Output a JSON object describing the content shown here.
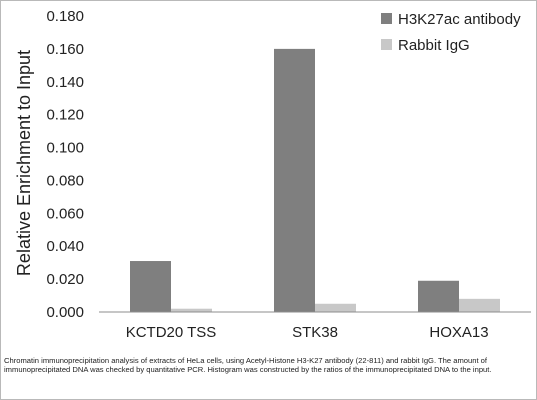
{
  "chart_data": {
    "type": "bar",
    "title": "",
    "xlabel": "",
    "ylabel": "Relative Enrichment to Input",
    "ylim": [
      0,
      0.18
    ],
    "ytick_step": 0.02,
    "ytick_labels": [
      "0.000",
      "0.020",
      "0.040",
      "0.060",
      "0.080",
      "0.100",
      "0.120",
      "0.140",
      "0.160",
      "0.180"
    ],
    "grid": false,
    "legend_position": "top-right",
    "categories": [
      "KCTD20 TSS",
      "STK38",
      "HOXA13"
    ],
    "series": [
      {
        "name": "H3K27ac antibody",
        "color": "#7f7f7f",
        "values": [
          0.031,
          0.16,
          0.019
        ]
      },
      {
        "name": "Rabbit IgG",
        "color": "#c8c8c8",
        "values": [
          0.002,
          0.005,
          0.008
        ]
      }
    ]
  },
  "caption": "Chromatin immunoprecipitation analysis of extracts of HeLa cells, using Acetyl-Histone H3-K27 antibody (22-811) and rabbit IgG. The amount of immunoprecipitated DNA was checked by quantitative PCR. Histogram was constructed by the ratios of the immunoprecipitated DNA to the input."
}
